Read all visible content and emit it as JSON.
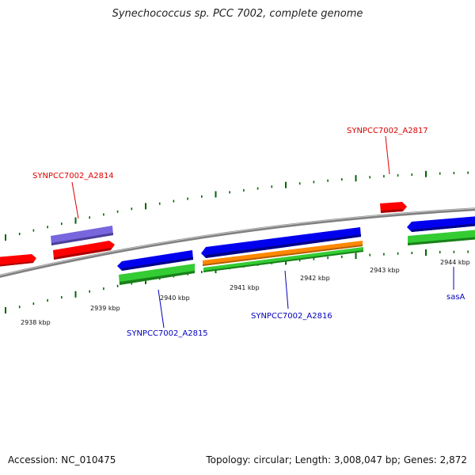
{
  "title": "Synechococcus sp. PCC 7002, complete genome",
  "footer": {
    "accession": "Accession: NC_010475",
    "summary": "Topology: circular; Length: 3,008,047 bp; Genes: 2,872"
  },
  "colors": {
    "backbone": "#808080",
    "tick": "#006600",
    "red": "#ff0000",
    "blue": "#0000ee",
    "green": "#33cc33",
    "orange": "#ff8800",
    "lavender": "#7766dd",
    "label_red": "#dd0000",
    "label_blue": "#0000bb"
  },
  "kbp_labels": [
    "2938 kbp",
    "2939 kbp",
    "2940 kbp",
    "2941 kbp",
    "2942 kbp",
    "2943 kbp",
    "2944 kbp"
  ],
  "genes": [
    {
      "name": "SYNPCC7002_A2814",
      "color": "red"
    },
    {
      "name": "SYNPCC7002_A2815",
      "color": "blue"
    },
    {
      "name": "SYNPCC7002_A2816",
      "color": "blue"
    },
    {
      "name": "SYNPCC7002_A2817",
      "color": "red"
    },
    {
      "name": "sasA",
      "color": "blue"
    }
  ]
}
